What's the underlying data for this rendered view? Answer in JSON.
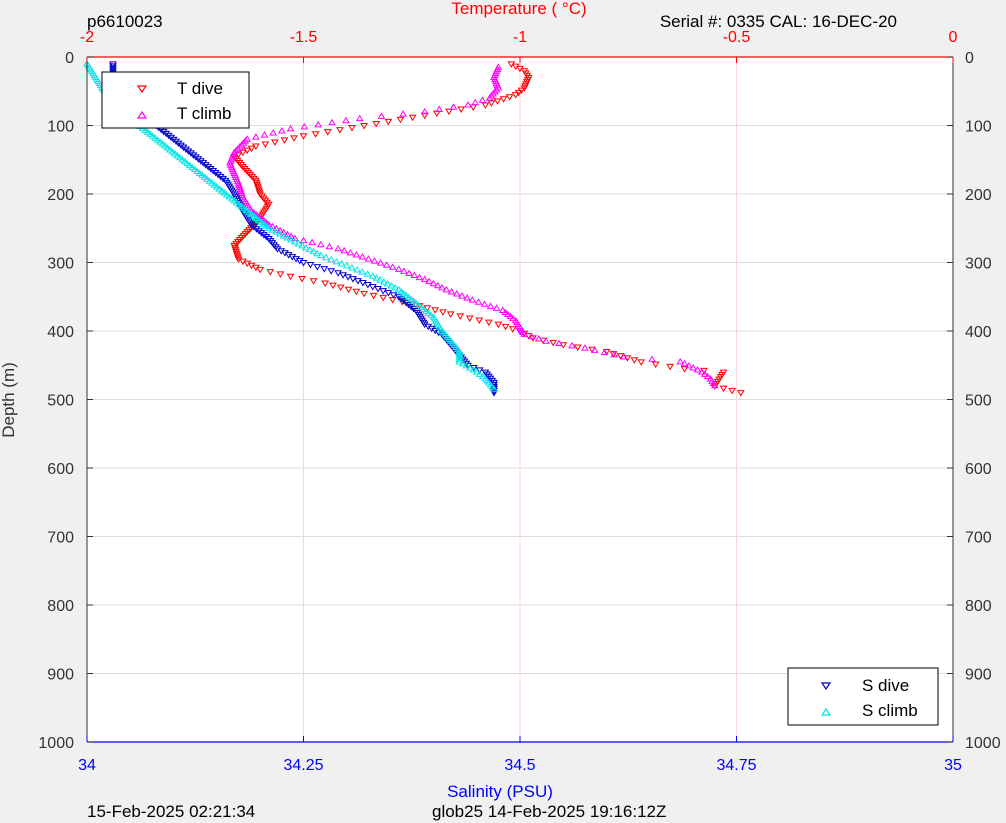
{
  "header": {
    "profile_id": "p6610023",
    "serial_cal": "Serial #: 0335  CAL: 16-DEC-20"
  },
  "footer": {
    "date_left": "15-Feb-2025 02:21:34",
    "date_right": "glob25 14-Feb-2025 19:16:12Z"
  },
  "colors": {
    "t_dive": "#ff0000",
    "t_climb": "#ff00ff",
    "s_dive": "#0000cc",
    "s_climb": "#00e5e5",
    "temperature_axis": "#ff0000",
    "salinity_axis": "#0000ff",
    "depth_axis": "#333333"
  },
  "chart_data": {
    "type": "scatter",
    "y_axis": {
      "label": "Depth (m)",
      "range": [
        0,
        1000
      ],
      "reversed": true,
      "ticks": [
        "0",
        "100",
        "200",
        "300",
        "400",
        "500",
        "600",
        "700",
        "800",
        "900",
        "1000"
      ]
    },
    "x_axis_top": {
      "label": "Temperature (    °C)",
      "range": [
        -2,
        0
      ],
      "ticks": [
        "-2",
        "-1.5",
        "-1",
        "-0.5",
        "0"
      ]
    },
    "x_axis_bottom": {
      "label": "Salinity (PSU)",
      "range": [
        34,
        35
      ],
      "ticks": [
        "34",
        "34.25",
        "34.5",
        "34.75",
        "35"
      ]
    },
    "grid": true,
    "legend_temperature": {
      "placement": "top-left",
      "entries": [
        "T dive",
        "T climb"
      ]
    },
    "legend_salinity": {
      "placement": "bottom-right",
      "entries": [
        "S dive",
        "S climb"
      ]
    },
    "series": [
      {
        "name": "T dive",
        "axis": "temperature",
        "points": [
          [
            -1.02,
            10
          ],
          [
            -0.99,
            20
          ],
          [
            -0.98,
            30
          ],
          [
            -0.99,
            45
          ],
          [
            -1.01,
            55
          ],
          [
            -1.08,
            70
          ],
          [
            -1.22,
            85
          ],
          [
            -1.36,
            100
          ],
          [
            -1.5,
            115
          ],
          [
            -1.61,
            130
          ],
          [
            -1.66,
            145
          ],
          [
            -1.64,
            160
          ],
          [
            -1.61,
            180
          ],
          [
            -1.6,
            200
          ],
          [
            -1.58,
            215
          ],
          [
            -1.6,
            235
          ],
          [
            -1.63,
            255
          ],
          [
            -1.66,
            275
          ],
          [
            -1.65,
            295
          ],
          [
            -1.6,
            310
          ],
          [
            -1.53,
            320
          ],
          [
            -1.45,
            330
          ],
          [
            -1.36,
            345
          ],
          [
            -1.25,
            360
          ],
          [
            -1.16,
            375
          ],
          [
            -1.05,
            390
          ],
          [
            -1.0,
            400
          ],
          [
            -0.97,
            410
          ],
          [
            -0.9,
            420
          ],
          [
            -0.8,
            430
          ],
          [
            -0.72,
            445
          ],
          [
            -0.62,
            455
          ],
          [
            -0.53,
            460
          ],
          [
            -0.54,
            470
          ],
          [
            -0.55,
            480
          ],
          [
            -0.49,
            490
          ]
        ]
      },
      {
        "name": "T climb",
        "axis": "temperature",
        "points": [
          [
            -1.05,
            15
          ],
          [
            -1.06,
            30
          ],
          [
            -1.05,
            45
          ],
          [
            -1.07,
            60
          ],
          [
            -1.12,
            70
          ],
          [
            -1.22,
            80
          ],
          [
            -1.37,
            90
          ],
          [
            -1.53,
            105
          ],
          [
            -1.63,
            120
          ],
          [
            -1.66,
            140
          ],
          [
            -1.67,
            155
          ],
          [
            -1.66,
            170
          ],
          [
            -1.65,
            185
          ],
          [
            -1.64,
            205
          ],
          [
            -1.62,
            225
          ],
          [
            -1.58,
            245
          ],
          [
            -1.52,
            265
          ],
          [
            -1.42,
            280
          ],
          [
            -1.35,
            295
          ],
          [
            -1.28,
            310
          ],
          [
            -1.22,
            325
          ],
          [
            -1.17,
            340
          ],
          [
            -1.11,
            355
          ],
          [
            -1.04,
            370
          ],
          [
            -1.01,
            385
          ],
          [
            -0.99,
            405
          ],
          [
            -0.94,
            415
          ],
          [
            -0.85,
            425
          ],
          [
            -0.76,
            438
          ],
          [
            -0.63,
            445
          ],
          [
            -0.58,
            460
          ],
          [
            -0.56,
            470
          ],
          [
            -0.55,
            480
          ]
        ]
      },
      {
        "name": "S dive",
        "axis": "salinity",
        "points": [
          [
            34.03,
            10
          ],
          [
            34.03,
            25
          ],
          [
            34.04,
            40
          ],
          [
            34.05,
            60
          ],
          [
            34.06,
            80
          ],
          [
            34.08,
            100
          ],
          [
            34.1,
            120
          ],
          [
            34.12,
            140
          ],
          [
            34.14,
            160
          ],
          [
            34.16,
            180
          ],
          [
            34.17,
            200
          ],
          [
            34.18,
            225
          ],
          [
            34.19,
            245
          ],
          [
            34.21,
            265
          ],
          [
            34.22,
            280
          ],
          [
            34.25,
            300
          ],
          [
            34.29,
            315
          ],
          [
            34.33,
            335
          ],
          [
            34.36,
            350
          ],
          [
            34.38,
            370
          ],
          [
            34.39,
            390
          ],
          [
            34.41,
            405
          ],
          [
            34.42,
            420
          ],
          [
            34.43,
            435
          ],
          [
            34.44,
            450
          ],
          [
            34.46,
            460
          ],
          [
            34.47,
            475
          ],
          [
            34.47,
            490
          ]
        ]
      },
      {
        "name": "S climb",
        "axis": "salinity",
        "points": [
          [
            34.0,
            10
          ],
          [
            34.01,
            30
          ],
          [
            34.02,
            50
          ],
          [
            34.03,
            70
          ],
          [
            34.05,
            90
          ],
          [
            34.07,
            110
          ],
          [
            34.09,
            130
          ],
          [
            34.11,
            150
          ],
          [
            34.13,
            170
          ],
          [
            34.15,
            190
          ],
          [
            34.17,
            210
          ],
          [
            34.19,
            230
          ],
          [
            34.21,
            250
          ],
          [
            34.24,
            270
          ],
          [
            34.27,
            290
          ],
          [
            34.3,
            305
          ],
          [
            34.33,
            320
          ],
          [
            34.36,
            340
          ],
          [
            34.38,
            360
          ],
          [
            34.4,
            380
          ],
          [
            34.41,
            400
          ],
          [
            34.42,
            415
          ],
          [
            34.43,
            430
          ],
          [
            34.43,
            445
          ],
          [
            34.45,
            460
          ],
          [
            34.46,
            470
          ],
          [
            34.47,
            485
          ]
        ]
      }
    ]
  }
}
